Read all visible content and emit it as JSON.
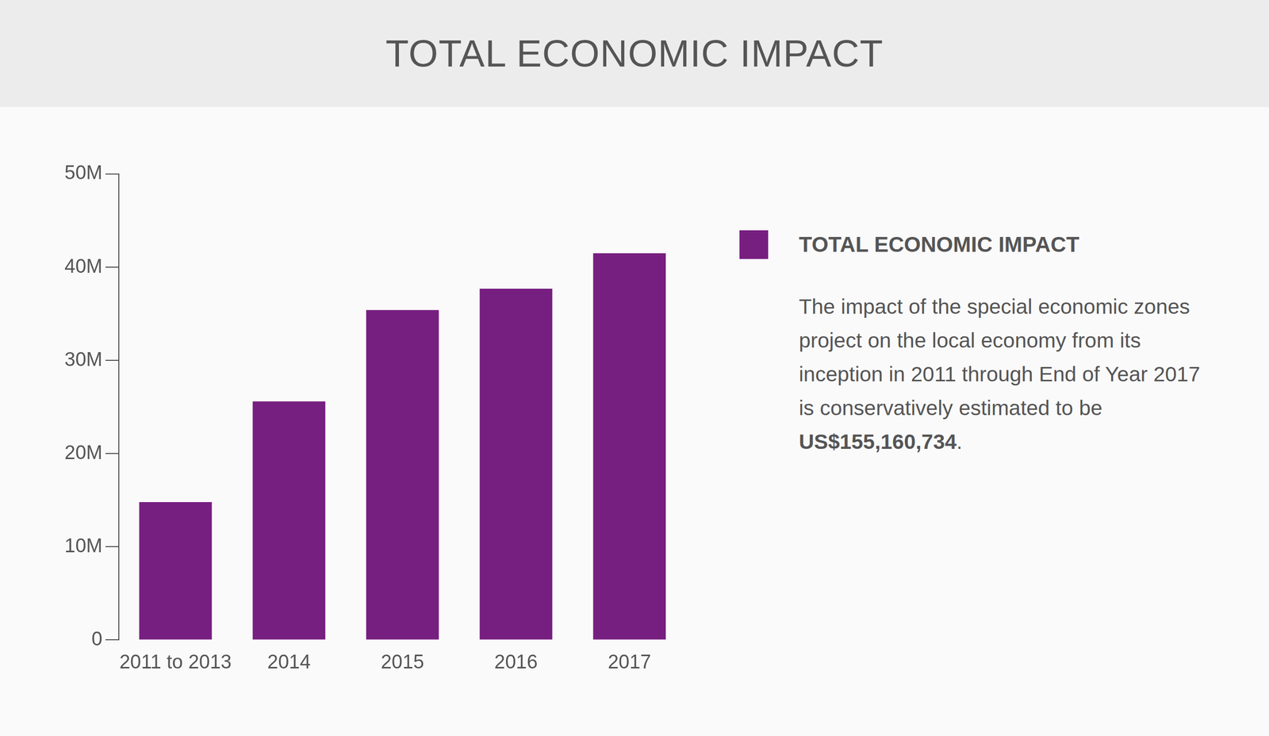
{
  "chart_data": {
    "type": "bar",
    "title": "TOTAL ECONOMIC IMPACT",
    "categories": [
      "2011 to 2013",
      "2014",
      "2015",
      "2016",
      "2017"
    ],
    "series": [
      {
        "name": "TOTAL ECONOMIC IMPACT",
        "color": "#771f80",
        "values": [
          14800000,
          25600000,
          35400000,
          37700000,
          41500000
        ]
      }
    ],
    "ylim": [
      0,
      50000000
    ],
    "yticks": [
      0,
      {
        "value": 10000000,
        "label": "10M"
      },
      {
        "value": 20000000,
        "label": "20M"
      },
      {
        "value": 30000000,
        "label": "30M"
      },
      {
        "value": 40000000,
        "label": "40M"
      },
      {
        "value": 50000000,
        "label": "50M"
      }
    ],
    "grid": false,
    "legend": "right",
    "description": [
      {
        "text": "The impact of the special economic zones project on the local economy from its inception in 2011 through End of Year 2017 is conservatively estimated to be ",
        "bold": false
      },
      {
        "text": "US$155,160,734",
        "bold": true
      },
      {
        "text": ".",
        "bold": false
      }
    ]
  }
}
